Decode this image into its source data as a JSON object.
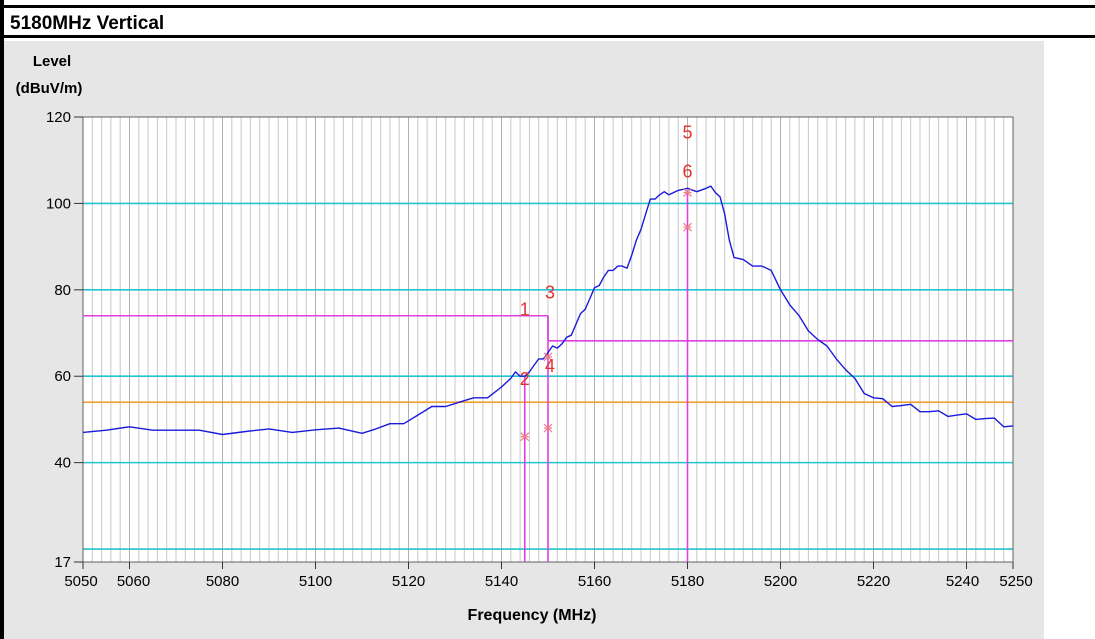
{
  "title": "5180MHz Vertical",
  "chart_data": {
    "type": "line",
    "ylabel_line1": "Level",
    "ylabel_line2": "(dBuV/m)",
    "xlabel": "Frequency (MHz)",
    "xlim": [
      5050,
      5250
    ],
    "ylim": [
      17,
      120
    ],
    "x_ticks": [
      5050,
      5060,
      5080,
      5100,
      5120,
      5140,
      5160,
      5180,
      5200,
      5220,
      5240,
      5250
    ],
    "y_ticks": [
      17,
      40,
      60,
      80,
      100,
      120
    ],
    "hlines": [
      {
        "y": 20,
        "color": "#22c4d0"
      },
      {
        "y": 40,
        "color": "#22c4d0"
      },
      {
        "y": 60,
        "color": "#22c4d0"
      },
      {
        "y": 80,
        "color": "#22c4d0"
      },
      {
        "y": 100,
        "color": "#22c4d0"
      },
      {
        "y": 54,
        "color": "#f0a030"
      }
    ],
    "limit_segments": [
      {
        "x": [
          5050,
          5150
        ],
        "y": 74,
        "color": "#e040e0"
      },
      {
        "x": [
          5150,
          5250
        ],
        "y": 68.2,
        "color": "#e040e0"
      }
    ],
    "marker_vlines": [
      {
        "x": 5145,
        "y_top": 60,
        "color": "#e040e0"
      },
      {
        "x": 5150,
        "y_top": 74,
        "color": "#e040e0"
      },
      {
        "x": 5180,
        "y_top": 103,
        "color": "#e040e0"
      }
    ],
    "markers": [
      {
        "label": "1",
        "x": 5145,
        "y": 74
      },
      {
        "label": "2",
        "x": 5145,
        "y": 58
      },
      {
        "label": "3",
        "x": 5150,
        "y": 78
      },
      {
        "label": "4",
        "x": 5150,
        "y": 61
      },
      {
        "label": "5",
        "x": 5180,
        "y": 115
      },
      {
        "label": "6",
        "x": 5180,
        "y": 106
      }
    ],
    "star_points": [
      {
        "x": 5145,
        "y": 46
      },
      {
        "x": 5150,
        "y": 48
      },
      {
        "x": 5180,
        "y": 94.5
      },
      {
        "x": 5180,
        "y": 102.5
      },
      {
        "x": 5150,
        "y": 64.5
      }
    ],
    "series": [
      {
        "color": "#1a1adc",
        "x": [
          5050,
          5055,
          5060,
          5065,
          5070,
          5075,
          5080,
          5085,
          5090,
          5095,
          5100,
          5105,
          5110,
          5113,
          5116,
          5119,
          5122,
          5125,
          5128,
          5131,
          5134,
          5137,
          5140,
          5142,
          5143,
          5144,
          5145,
          5146,
          5147,
          5148,
          5149,
          5150,
          5151,
          5152,
          5153,
          5154,
          5155,
          5156,
          5157,
          5158,
          5159,
          5160,
          5161,
          5162,
          5163,
          5164,
          5165,
          5166,
          5167,
          5168,
          5169,
          5170,
          5171,
          5172,
          5173,
          5174,
          5175,
          5176,
          5178,
          5180,
          5182,
          5184,
          5185,
          5186,
          5187,
          5188,
          5189,
          5190,
          5192,
          5194,
          5196,
          5198,
          5200,
          5202,
          5204,
          5206,
          5208,
          5210,
          5212,
          5214,
          5216,
          5218,
          5220,
          5222,
          5224,
          5226,
          5228,
          5230,
          5232,
          5234,
          5236,
          5238,
          5240,
          5242,
          5244,
          5246,
          5248,
          5250
        ],
        "y": [
          47,
          47.5,
          47.8,
          48,
          47.5,
          47,
          47,
          47.2,
          47.3,
          47.5,
          47.6,
          47.5,
          47.3,
          47.8,
          48.5,
          49.5,
          51,
          52.5,
          53.5,
          54,
          54.5,
          55.5,
          57.5,
          59,
          61.5,
          60,
          59.5,
          61.5,
          62.5,
          63.5,
          64.5,
          65.5,
          66.5,
          67,
          67.5,
          68.5,
          70,
          72,
          74,
          76,
          78,
          80,
          81.5,
          83,
          84,
          85,
          85.5,
          85,
          85.5,
          88,
          91,
          94.5,
          97.5,
          100.5,
          101.5,
          102,
          102.2,
          102.5,
          103,
          103,
          103.2,
          103.5,
          103.5,
          103,
          101.5,
          97,
          92,
          87.5,
          86.5,
          86,
          85.5,
          84,
          80.5,
          76.5,
          73.5,
          71,
          68.5,
          66.5,
          64.5,
          61.5,
          59,
          56.5,
          55,
          54.3,
          53.5,
          53.2,
          53,
          52.3,
          51.8,
          51.5,
          51.2,
          51,
          50.8,
          50.5,
          50.2,
          49.8,
          48.8,
          48.5
        ]
      }
    ]
  }
}
